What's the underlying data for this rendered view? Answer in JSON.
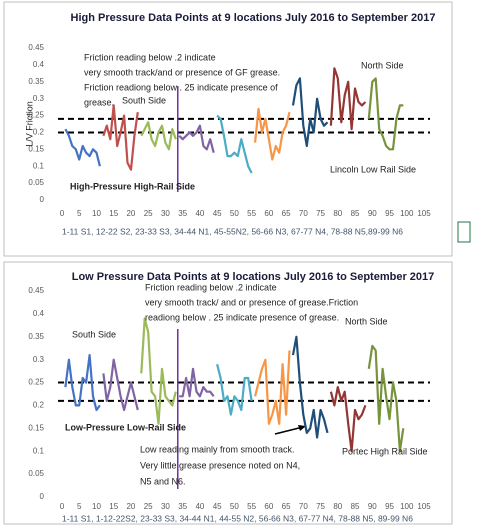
{
  "chart_data": [
    {
      "type": "line",
      "title": "High Pressure Data Points at 9 locations July 2016 to September 2017",
      "y_label": "L/V Friction",
      "x_label": "1-11 S1, 12-22 S2, 23-33 S3, 34-44 N1, 45-55N2, 56-66 N3, 67-77 N4, 78-88 N5,89-99 N6",
      "xlim": [
        0,
        105
      ],
      "xticks": [
        0,
        5,
        10,
        15,
        20,
        25,
        30,
        35,
        40,
        45,
        50,
        55,
        60,
        65,
        70,
        75,
        80,
        85,
        90,
        95,
        100,
        105
      ],
      "ylim": [
        0,
        0.45
      ],
      "yticks": [
        0,
        0.05,
        0.1,
        0.15,
        0.2,
        0.25,
        0.3,
        0.35,
        0.4,
        0.45
      ],
      "grid": false,
      "reference_lines": [
        0.24,
        0.2
      ],
      "vlines": [
        33
      ],
      "annotations": [
        "Friction reading below .2 indicate",
        "very smooth track/and or presence of GF grease.",
        "Friction readiong below . 25 indicate presence of",
        "grease.",
        "South Side",
        "North Side",
        "High-Pressure High-Rail Side",
        "Lincoln Low Rail Side"
      ],
      "series": [
        {
          "color": "#4472c4",
          "x": [
            1,
            2,
            3,
            4,
            5,
            6,
            7,
            8,
            9,
            10,
            11
          ],
          "values": [
            0.21,
            0.19,
            0.16,
            0.15,
            0.12,
            0.16,
            0.14,
            0.13,
            0.15,
            0.14,
            0.1
          ]
        },
        {
          "color": "#c0504d",
          "x": [
            12,
            13,
            14,
            15,
            16,
            17,
            18,
            19,
            20,
            21,
            22
          ],
          "values": [
            0.19,
            0.22,
            0.18,
            0.28,
            0.16,
            0.2,
            0.25,
            0.11,
            0.09,
            0.19,
            0.26
          ]
        },
        {
          "color": "#9bbb59",
          "x": [
            23,
            24,
            25,
            26,
            27,
            28,
            29,
            30,
            31,
            32,
            33
          ],
          "values": [
            0.19,
            0.21,
            0.23,
            0.18,
            0.16,
            0.2,
            0.22,
            0.17,
            0.15,
            0.21,
            0.18
          ]
        },
        {
          "color": "#8064a2",
          "x": [
            34,
            35,
            36,
            37,
            38,
            39,
            40,
            41,
            42,
            43,
            44
          ],
          "values": [
            0.19,
            0.18,
            0.19,
            0.2,
            0.19,
            0.2,
            0.22,
            0.16,
            0.15,
            0.18,
            0.14
          ]
        },
        {
          "color": "#4bacc6",
          "x": [
            45,
            46,
            47,
            48,
            49,
            50,
            51,
            52,
            53,
            54,
            55
          ],
          "values": [
            0.25,
            0.24,
            0.19,
            0.13,
            0.13,
            0.14,
            0.13,
            0.18,
            0.14,
            0.1,
            0.08
          ]
        },
        {
          "color": "#f79646",
          "x": [
            56,
            57,
            58,
            59,
            60,
            61,
            62,
            63,
            64,
            65,
            66
          ],
          "values": [
            0.17,
            0.27,
            0.2,
            0.24,
            0.18,
            0.12,
            0.16,
            0.14,
            0.2,
            0.22,
            0.26
          ]
        },
        {
          "color": "#1f4e79",
          "x": [
            67,
            68,
            69,
            70,
            71,
            72,
            73,
            74,
            75,
            76,
            77
          ],
          "values": [
            0.28,
            0.34,
            0.36,
            0.22,
            0.16,
            0.24,
            0.2,
            0.3,
            0.24,
            0.22,
            0.23
          ]
        },
        {
          "color": "#943634",
          "x": [
            78,
            79,
            80,
            81,
            82,
            83,
            84,
            85,
            86,
            87,
            88
          ],
          "values": [
            0.22,
            0.39,
            0.36,
            0.23,
            0.31,
            0.35,
            0.21,
            0.33,
            0.29,
            0.28,
            0.29
          ]
        },
        {
          "color": "#77933c",
          "x": [
            89,
            90,
            91,
            92,
            93,
            94,
            95,
            96,
            97,
            98,
            99
          ],
          "values": [
            0.24,
            0.35,
            0.36,
            0.21,
            0.19,
            0.16,
            0.15,
            0.15,
            0.24,
            0.28,
            0.28
          ]
        }
      ]
    },
    {
      "type": "line",
      "title": "Low Pressure Data Points at 9 locations July 2016 to September 2017",
      "x_label": "1-11 S1, 1-12-22S2, 23-33 S3, 34-44 N1, 44-55 N2, 56-66 N3, 67-77 N4, 78-88 N5, 89-99 N6",
      "xlim": [
        0,
        105
      ],
      "xticks": [
        0,
        5,
        10,
        15,
        20,
        25,
        30,
        35,
        40,
        45,
        50,
        55,
        60,
        65,
        70,
        75,
        80,
        85,
        90,
        95,
        100,
        105
      ],
      "ylim": [
        0,
        0.45
      ],
      "yticks": [
        0,
        0.05,
        0.1,
        0.15,
        0.2,
        0.25,
        0.3,
        0.35,
        0.4,
        0.45
      ],
      "grid": false,
      "reference_lines": [
        0.25,
        0.21
      ],
      "vlines": [
        33
      ],
      "annotations": [
        "Friction reading below .2 indicate",
        "very smooth track/ and or presence of grease.Friction",
        "readiong below . 25 indicate presence of grease.",
        "South Side",
        "North Side",
        "Low-Pressure Low-Rail Side",
        "Low reading mainly from smooth track.",
        "Very little grease presence noted on N4,",
        "N5 and N6.",
        "Portec High Rail Side"
      ],
      "series": [
        {
          "color": "#4472c4",
          "x": [
            1,
            2,
            3,
            4,
            5,
            6,
            7,
            8,
            9,
            10,
            11
          ],
          "values": [
            0.24,
            0.3,
            0.24,
            0.2,
            0.2,
            0.26,
            0.25,
            0.31,
            0.22,
            0.19,
            0.2
          ]
        },
        {
          "color": "#8064a2",
          "x": [
            12,
            13,
            14,
            15,
            16,
            17,
            18,
            19,
            20,
            21,
            22
          ],
          "values": [
            0.27,
            0.21,
            0.24,
            0.3,
            0.26,
            0.22,
            0.19,
            0.22,
            0.25,
            0.22,
            0.19
          ]
        },
        {
          "color": "#9bbb59",
          "x": [
            23,
            24,
            25,
            26,
            27,
            28,
            29,
            30,
            31,
            32,
            33
          ],
          "values": [
            0.27,
            0.39,
            0.36,
            0.23,
            0.22,
            0.16,
            0.28,
            0.22,
            0.21,
            0.2,
            0.23
          ]
        },
        {
          "color": "#8064a2",
          "x": [
            34,
            35,
            36,
            37,
            38,
            39,
            40,
            41,
            42,
            43,
            44
          ],
          "values": [
            0.22,
            0.22,
            0.26,
            0.22,
            0.28,
            0.23,
            0.22,
            0.24,
            0.23,
            0.23,
            0.22
          ]
        },
        {
          "color": "#4bacc6",
          "x": [
            45,
            46,
            47,
            48,
            49,
            50,
            51,
            52,
            53,
            54,
            55
          ],
          "values": [
            0.29,
            0.26,
            0.21,
            0.22,
            0.18,
            0.22,
            0.21,
            0.19,
            0.26,
            0.26,
            0.21
          ]
        },
        {
          "color": "#f79646",
          "x": [
            56,
            57,
            58,
            59,
            60,
            61,
            62,
            63,
            64,
            65,
            66
          ],
          "values": [
            0.22,
            0.25,
            0.28,
            0.3,
            0.16,
            0.18,
            0.21,
            0.16,
            0.29,
            0.18,
            0.32
          ]
        },
        {
          "color": "#1f4e79",
          "x": [
            67,
            68,
            69,
            70,
            71,
            72,
            73,
            74,
            75,
            76,
            77
          ],
          "values": [
            0.31,
            0.35,
            0.25,
            0.18,
            0.14,
            0.15,
            0.19,
            0.13,
            0.19,
            0.17,
            0.14
          ]
        },
        {
          "color": "#943634",
          "x": [
            78,
            79,
            80,
            81,
            82,
            83,
            84,
            85,
            86,
            87,
            88
          ],
          "values": [
            0.23,
            0.2,
            0.24,
            0.21,
            0.23,
            0.16,
            0.1,
            0.19,
            0.17,
            0.18,
            0.2
          ]
        },
        {
          "color": "#77933c",
          "x": [
            89,
            90,
            91,
            92,
            93,
            94,
            95,
            96,
            97,
            98,
            99
          ],
          "values": [
            0.28,
            0.33,
            0.32,
            0.16,
            0.28,
            0.22,
            0.17,
            0.25,
            0.21,
            0.1,
            0.15
          ]
        }
      ]
    }
  ]
}
